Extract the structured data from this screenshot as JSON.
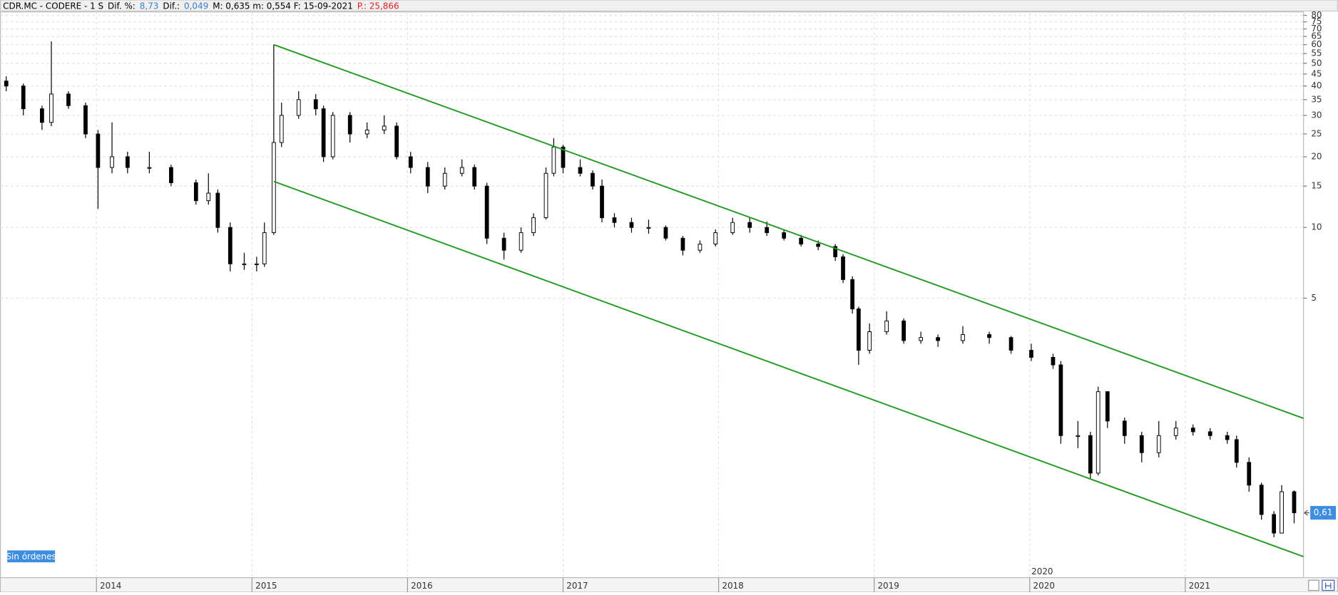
{
  "header": {
    "items": [
      {
        "text": "CDR.MC - CODERE -  1 S",
        "color": "#000000"
      },
      {
        "text": "Dif. %:",
        "color": "#000000"
      },
      {
        "text": "8,73",
        "color": "#3a7fd0"
      },
      {
        "text": "Dif.:",
        "color": "#000000"
      },
      {
        "text": "0,049",
        "color": "#3a7fd0"
      },
      {
        "text": "M: 0,635  m: 0,554  F: 15-09-2021",
        "color": "#000000"
      },
      {
        "text": "P.: 25,866",
        "color": "#e02020"
      }
    ]
  },
  "orders_label": "Sin órdenes",
  "chart_data": {
    "type": "candlestick",
    "log_scale": true,
    "grid": true,
    "up_color": "#ffffff",
    "down_color": "#000000",
    "xlim": [
      2013.41,
      2021.76
    ],
    "xticks": [
      2014,
      2015,
      2016,
      2017,
      2018,
      2019,
      2020,
      2021
    ],
    "ylim": [
      0.323,
      82.7
    ],
    "yticks": [
      80,
      75,
      70,
      65,
      60,
      55,
      50,
      45,
      40,
      35,
      30,
      25,
      20,
      15,
      10,
      5
    ],
    "x_marker_label": "2020",
    "last_price": {
      "value": 0.61,
      "label": "0,61"
    },
    "x": [
      2013.42,
      2013.53,
      2013.65,
      2013.71,
      2013.82,
      2013.93,
      2014.01,
      2014.1,
      2014.2,
      2014.34,
      2014.48,
      2014.64,
      2014.72,
      2014.78,
      2014.86,
      2014.95,
      2015.03,
      2015.08,
      2015.14,
      2015.19,
      2015.3,
      2015.41,
      2015.46,
      2015.52,
      2015.63,
      2015.74,
      2015.85,
      2015.93,
      2016.02,
      2016.13,
      2016.24,
      2016.35,
      2016.43,
      2016.51,
      2016.62,
      2016.73,
      2016.81,
      2016.89,
      2016.94,
      2017.0,
      2017.11,
      2017.19,
      2017.25,
      2017.33,
      2017.44,
      2017.55,
      2017.66,
      2017.77,
      2017.88,
      2017.98,
      2018.09,
      2018.2,
      2018.31,
      2018.42,
      2018.53,
      2018.64,
      2018.75,
      2018.8,
      2018.86,
      2018.9,
      2018.97,
      2019.08,
      2019.19,
      2019.3,
      2019.41,
      2019.57,
      2019.74,
      2019.88,
      2020.01,
      2020.15,
      2020.2,
      2020.31,
      2020.39,
      2020.44,
      2020.5,
      2020.61,
      2020.72,
      2020.83,
      2020.94,
      2021.05,
      2021.16,
      2021.27,
      2021.33,
      2021.41,
      2021.49,
      2021.57,
      2021.62,
      2021.7
    ],
    "open": [
      42,
      40,
      32,
      28,
      37,
      33,
      25,
      18,
      20,
      18,
      18,
      15.5,
      13,
      14,
      10,
      7,
      7,
      7,
      9.5,
      23,
      30,
      35,
      32,
      20,
      30,
      25,
      26,
      27,
      20,
      18,
      15,
      17,
      18,
      15,
      9,
      8,
      9.5,
      11,
      17,
      22,
      18,
      17,
      15,
      11,
      10.5,
      10,
      10,
      9,
      8,
      8.5,
      9.5,
      10.5,
      10,
      9.5,
      9,
      8.5,
      8.3,
      7.5,
      6,
      4.5,
      3,
      3.6,
      4,
      3.3,
      3.4,
      3.3,
      3.5,
      3.4,
      3.0,
      2.8,
      2.6,
      1.3,
      1.3,
      0.9,
      2.0,
      1.5,
      1.3,
      1.1,
      1.3,
      1.4,
      1.35,
      1.3,
      1.25,
      1.0,
      0.8,
      0.6,
      0.5,
      0.75
    ],
    "high": [
      44,
      41,
      33,
      62,
      38,
      34,
      26,
      28,
      21,
      21,
      18.5,
      16,
      17,
      14.5,
      10.5,
      7.8,
      7.5,
      10.5,
      60,
      34,
      38,
      37,
      33,
      31,
      31,
      28,
      30,
      28,
      21,
      19,
      18,
      19.5,
      18.5,
      15.5,
      9.5,
      10,
      11.5,
      18,
      24,
      22.5,
      19.5,
      17.5,
      16,
      11.5,
      11,
      10.8,
      10.2,
      9.2,
      8.8,
      9.8,
      11,
      11,
      10.6,
      9.8,
      9.3,
      8.8,
      8.5,
      7.7,
      6.2,
      4.6,
      3.9,
      4.4,
      4.1,
      3.6,
      3.5,
      3.8,
      3.6,
      3.45,
      3.2,
      2.9,
      2.7,
      1.5,
      1.35,
      2.1,
      2.0,
      1.55,
      1.35,
      1.5,
      1.5,
      1.45,
      1.4,
      1.35,
      1.3,
      1.05,
      0.82,
      0.62,
      0.8,
      0.76
    ],
    "low": [
      38,
      30,
      26,
      27,
      32,
      24,
      12,
      17,
      17,
      17,
      15,
      12.5,
      12.5,
      9.5,
      6.5,
      6.6,
      6.5,
      6.8,
      9.3,
      22,
      29,
      30,
      19,
      19.5,
      23,
      24,
      25,
      19.5,
      17,
      14,
      14.5,
      16.5,
      14.5,
      8.5,
      7.3,
      7.8,
      9.2,
      10.8,
      16.5,
      17,
      16.5,
      14.5,
      10.5,
      10,
      9.5,
      9.4,
      8.8,
      7.6,
      7.8,
      8.3,
      9.3,
      9.5,
      9.2,
      8.8,
      8.3,
      8,
      7.2,
      5.8,
      4.3,
      2.6,
      2.9,
      3.5,
      3.2,
      3.2,
      3.1,
      3.2,
      3.2,
      2.9,
      2.7,
      2.5,
      1.2,
      1.15,
      0.85,
      0.88,
      1.4,
      1.2,
      1.0,
      1.05,
      1.25,
      1.3,
      1.25,
      1.2,
      0.95,
      0.75,
      0.57,
      0.48,
      0.5,
      0.55
    ],
    "close": [
      40,
      32,
      28,
      37,
      33,
      25,
      18,
      20,
      18,
      18,
      15.5,
      13,
      14,
      10,
      7,
      7,
      7,
      9.5,
      23,
      30,
      35,
      32,
      20,
      30,
      25,
      26,
      27,
      20,
      18,
      15,
      17,
      18,
      15,
      9,
      8,
      9.5,
      11,
      17,
      22,
      18,
      17,
      15,
      11,
      10.5,
      10,
      10,
      9,
      8,
      8.5,
      9.5,
      10.5,
      10,
      9.5,
      9,
      8.5,
      8.3,
      7.5,
      6,
      4.5,
      3,
      3.6,
      4,
      3.3,
      3.4,
      3.3,
      3.5,
      3.4,
      3.0,
      2.8,
      2.6,
      1.3,
      1.3,
      0.9,
      2.0,
      1.5,
      1.3,
      1.1,
      1.3,
      1.4,
      1.35,
      1.3,
      1.25,
      1.0,
      0.8,
      0.6,
      0.5,
      0.75,
      0.61
    ],
    "lines": [
      {
        "color": "#1f9a1f",
        "x": [
          2015.14,
          2021.76
        ],
        "y": [
          60,
          1.54
        ]
      },
      {
        "color": "#1f9a1f",
        "x": [
          2015.14,
          2021.76
        ],
        "y": [
          15.7,
          0.397
        ]
      }
    ]
  }
}
